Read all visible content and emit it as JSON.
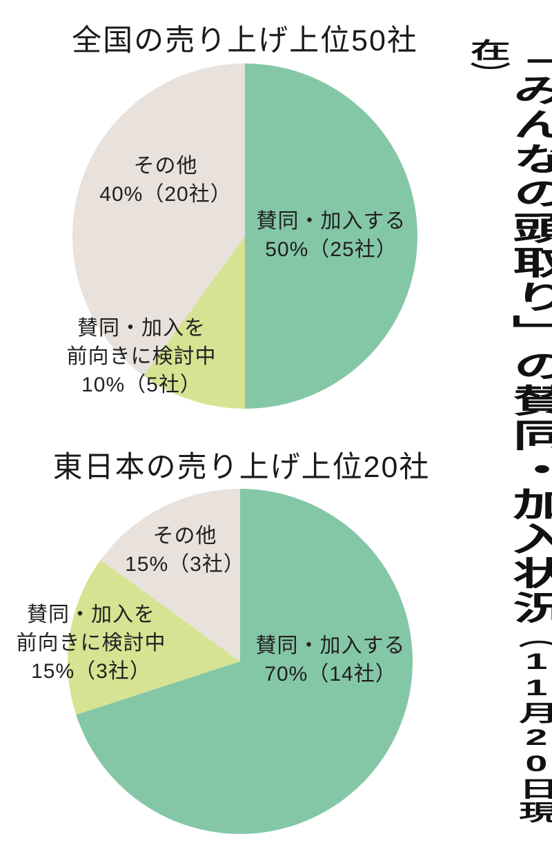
{
  "page": {
    "background": "#ffffff",
    "text_color": "#1f1f1f"
  },
  "side_title": {
    "main": "「みんなの頭取り」の賛同・加入状況",
    "note_parts": [
      "（",
      "11",
      "月",
      "20",
      "日現在）"
    ],
    "note_full": "（11月20日現在）"
  },
  "chart_data": [
    {
      "type": "pie",
      "title": "全国の売り上げ上位50社",
      "start_angle": "top",
      "direction": "clockwise",
      "total_label": "50社",
      "slices": [
        {
          "label": "賛同・加入する",
          "pct": 50,
          "count": "25社",
          "color": "#84c7a7",
          "lines": [
            "賛同・加入する",
            "50%（25社）"
          ]
        },
        {
          "label": "賛同・加入を前向きに検討中",
          "pct": 10,
          "count": "5社",
          "color": "#d6e392",
          "lines": [
            "賛同・加入を",
            "前向きに検討中",
            "10%（5社）"
          ]
        },
        {
          "label": "その他",
          "pct": 40,
          "count": "20社",
          "color": "#e8e1dc",
          "lines": [
            "その他",
            "40%（20社）"
          ]
        }
      ]
    },
    {
      "type": "pie",
      "title": "東日本の売り上げ上位20社",
      "start_angle": "top",
      "direction": "clockwise",
      "total_label": "20社",
      "slices": [
        {
          "label": "賛同・加入する",
          "pct": 70,
          "count": "14社",
          "color": "#84c7a7",
          "lines": [
            "賛同・加入する",
            "70%（14社）"
          ]
        },
        {
          "label": "賛同・加入を前向きに検討中",
          "pct": 15,
          "count": "3社",
          "color": "#d6e392",
          "lines": [
            "賛同・加入を",
            "前向きに検討中",
            "15%（3社）"
          ]
        },
        {
          "label": "その他",
          "pct": 15,
          "count": "3社",
          "color": "#e8e1dc",
          "lines": [
            "その他",
            "15%（3社）"
          ]
        }
      ]
    }
  ]
}
